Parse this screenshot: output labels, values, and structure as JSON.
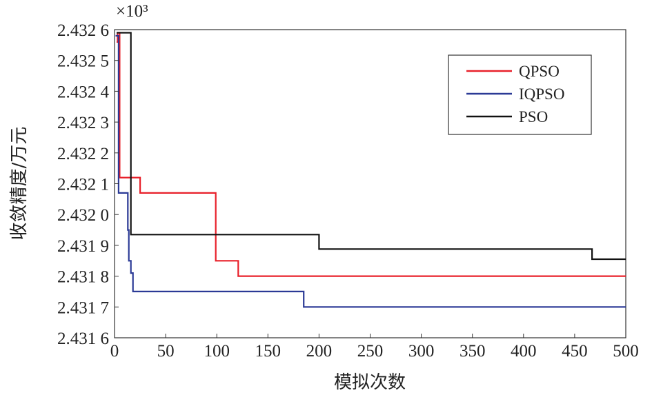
{
  "chart_data": {
    "type": "line",
    "xlabel": "模拟次数",
    "ylabel": "收敛精度/万元",
    "multiplier_label": "×10³",
    "xlim": [
      0,
      500
    ],
    "ylim": [
      2431.6,
      2432.6
    ],
    "x_ticks": [
      0,
      50,
      100,
      150,
      200,
      250,
      300,
      350,
      400,
      450,
      500
    ],
    "y_ticks": [
      2431.6,
      2431.7,
      2431.8,
      2431.9,
      2432.0,
      2432.1,
      2432.2,
      2432.3,
      2432.4,
      2432.5,
      2432.6
    ],
    "y_tick_labels": [
      "2.431 6",
      "2.431 7",
      "2.431 8",
      "2.431 9",
      "2.432 0",
      "2.432 1",
      "2.432 2",
      "2.432 3",
      "2.432 4",
      "2.432 5",
      "2.432 6"
    ],
    "grid": false,
    "legend_position": "top-right",
    "series": [
      {
        "name": "QPSO",
        "color": "#e8202a",
        "points": [
          [
            2,
            2432.56
          ],
          [
            3,
            2432.56
          ],
          [
            3,
            2432.59
          ],
          [
            5,
            2432.59
          ],
          [
            5,
            2432.12
          ],
          [
            25,
            2432.12
          ],
          [
            25,
            2432.07
          ],
          [
            99,
            2432.07
          ],
          [
            99,
            2431.85
          ],
          [
            121,
            2431.85
          ],
          [
            121,
            2431.8
          ],
          [
            500,
            2431.8
          ]
        ]
      },
      {
        "name": "IQPSO",
        "color": "#2b3a96",
        "points": [
          [
            1,
            2432.58
          ],
          [
            4,
            2432.58
          ],
          [
            4,
            2432.07
          ],
          [
            13,
            2432.07
          ],
          [
            13,
            2431.95
          ],
          [
            14,
            2431.95
          ],
          [
            14,
            2431.85
          ],
          [
            16,
            2431.85
          ],
          [
            16,
            2431.81
          ],
          [
            18,
            2431.81
          ],
          [
            18,
            2431.75
          ],
          [
            185,
            2431.75
          ],
          [
            185,
            2431.7
          ],
          [
            500,
            2431.7
          ]
        ]
      },
      {
        "name": "PSO",
        "color": "#111111",
        "points": [
          [
            2,
            2432.59
          ],
          [
            16,
            2432.59
          ],
          [
            16,
            2431.935
          ],
          [
            200,
            2431.935
          ],
          [
            200,
            2431.888
          ],
          [
            467,
            2431.888
          ],
          [
            467,
            2431.855
          ],
          [
            500,
            2431.855
          ]
        ]
      }
    ]
  }
}
